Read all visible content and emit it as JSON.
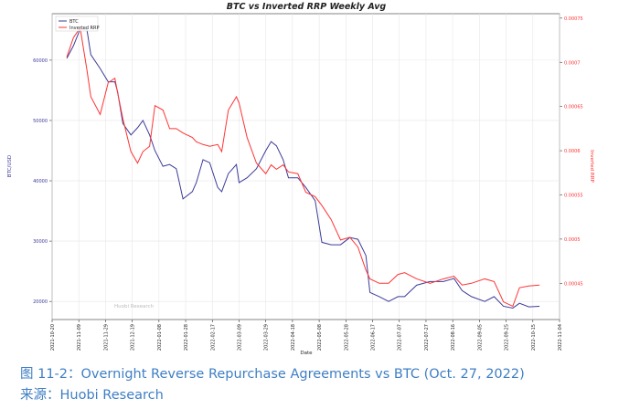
{
  "chart_data": {
    "type": "line",
    "title": "BTC vs Inverted RRP Weekly Avg",
    "xlabel": "Date",
    "ylabel": "BTC/USD",
    "y2label": "Inverted RRP",
    "watermark": "Huobi Research",
    "legend": "upper left",
    "grid": true,
    "xlim": [
      "2021-10-20",
      "2022-11-04"
    ],
    "xticks": [
      "2021-10-20",
      "2021-11-09",
      "2021-11-29",
      "2021-12-19",
      "2022-01-08",
      "2022-01-28",
      "2022-02-17",
      "2022-03-09",
      "2022-03-29",
      "2022-04-18",
      "2022-05-08",
      "2022-05-28",
      "2022-06-17",
      "2022-07-07",
      "2022-07-27",
      "2022-08-16",
      "2022-09-05",
      "2022-09-25",
      "2022-10-15",
      "2022-11-04"
    ],
    "ylim": [
      17000,
      67700
    ],
    "yticks": [
      20000,
      30000,
      40000,
      50000,
      60000
    ],
    "y2lim": [
      0.000409,
      0.000755
    ],
    "y2ticks": [
      0.00045,
      0.0005,
      0.00055,
      0.0006,
      0.00065,
      0.0007,
      0.00075
    ],
    "x": [
      "2021-10-31",
      "2021-11-05",
      "2021-11-10",
      "2021-11-15",
      "2021-11-18",
      "2021-11-25",
      "2021-12-01",
      "2021-12-06",
      "2021-12-08",
      "2021-12-12",
      "2021-12-18",
      "2021-12-23",
      "2021-12-27",
      "2022-01-01",
      "2022-01-05",
      "2022-01-11",
      "2022-01-16",
      "2022-01-21",
      "2022-01-26",
      "2022-02-02",
      "2022-02-05",
      "2022-02-10",
      "2022-02-15",
      "2022-02-21",
      "2022-02-24",
      "2022-03-01",
      "2022-03-07",
      "2022-03-09",
      "2022-03-15",
      "2022-03-22",
      "2022-03-29",
      "2022-04-02",
      "2022-04-06",
      "2022-04-11",
      "2022-04-15",
      "2022-04-22",
      "2022-04-28",
      "2022-05-05",
      "2022-05-10",
      "2022-05-17",
      "2022-05-24",
      "2022-05-31",
      "2022-06-06",
      "2022-06-12",
      "2022-06-15",
      "2022-06-22",
      "2022-06-29",
      "2022-07-06",
      "2022-07-11",
      "2022-07-20",
      "2022-07-30",
      "2022-08-09",
      "2022-08-17",
      "2022-08-23",
      "2022-08-30",
      "2022-09-09",
      "2022-09-16",
      "2022-09-23",
      "2022-09-30",
      "2022-10-05",
      "2022-10-12",
      "2022-10-20"
    ],
    "series": [
      {
        "name": "BTC",
        "color": "#3b3b9a",
        "values": [
          60300,
          62400,
          65150,
          65150,
          60900,
          58600,
          56400,
          56400,
          54800,
          49500,
          47600,
          48800,
          50000,
          47600,
          45000,
          42400,
          42700,
          42000,
          37000,
          38200,
          39700,
          43500,
          43000,
          38900,
          38200,
          41200,
          42700,
          39700,
          40500,
          42000,
          45000,
          46500,
          45800,
          43500,
          40500,
          40500,
          38900,
          36700,
          29800,
          29400,
          29400,
          30600,
          30300,
          27600,
          21500,
          20800,
          20000,
          20800,
          20800,
          22700,
          23300,
          23300,
          23800,
          21800,
          20800,
          20000,
          20800,
          19200,
          18900,
          19700,
          19100,
          19200
        ]
      },
      {
        "name": "Inverted RRP",
        "color": "#ff3333",
        "axis": "y2",
        "values": [
          0.000706,
          0.000728,
          0.000739,
          0.000692,
          0.000661,
          0.000641,
          0.000677,
          0.000682,
          0.000666,
          0.000636,
          0.000599,
          0.000586,
          0.000599,
          0.000605,
          0.000651,
          0.000646,
          0.000625,
          0.000625,
          0.00062,
          0.000615,
          0.00061,
          0.000607,
          0.000605,
          0.000607,
          0.000599,
          0.000646,
          0.000661,
          0.000654,
          0.000615,
          0.000586,
          0.000574,
          0.000584,
          0.000579,
          0.000584,
          0.000576,
          0.000574,
          0.000553,
          0.000548,
          0.000538,
          0.000522,
          0.000499,
          0.000502,
          0.000491,
          0.000465,
          0.000455,
          0.00045,
          0.00045,
          0.00046,
          0.000462,
          0.000455,
          0.00045,
          0.000455,
          0.000458,
          0.000448,
          0.00045,
          0.000455,
          0.000452,
          0.000429,
          0.000424,
          0.000445,
          0.000447,
          0.000448
        ]
      }
    ]
  },
  "caption": {
    "figure": "图 11-2：Overnight Reverse Repurchase Agreements vs BTC (Oct. 27, 2022)",
    "source": "来源：Huobi Research"
  }
}
